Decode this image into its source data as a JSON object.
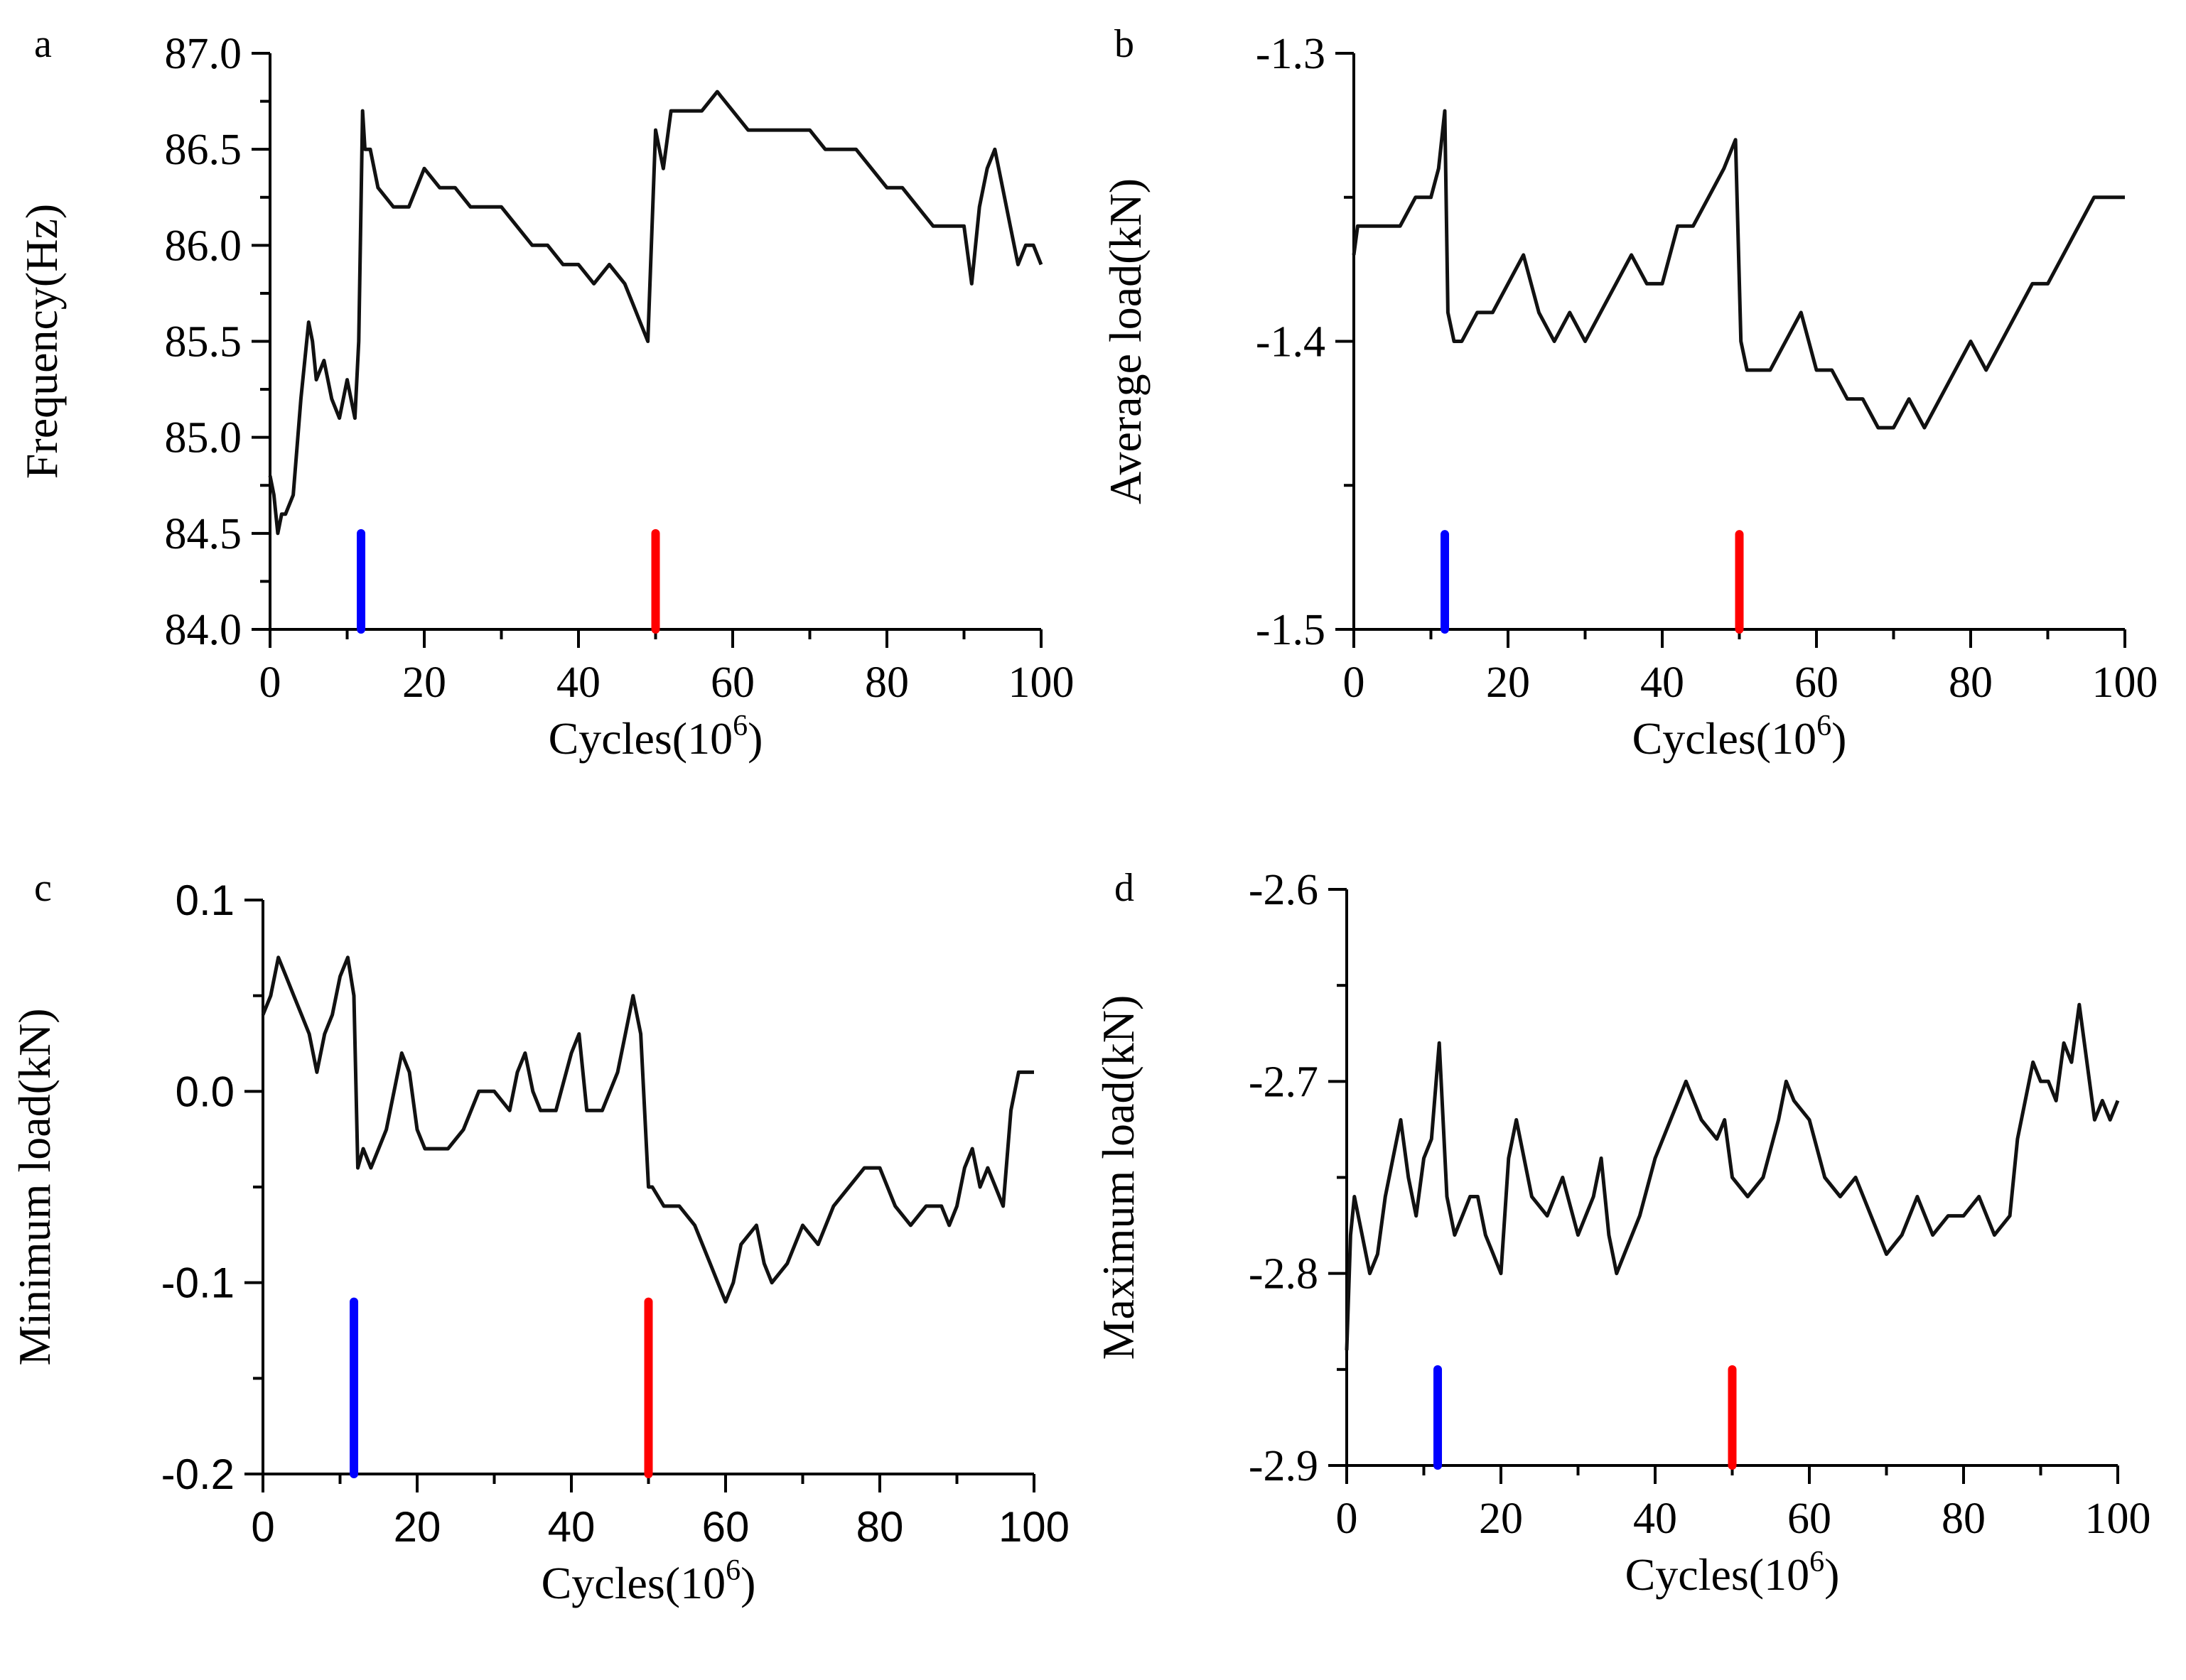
{
  "chart_data": [
    {
      "id": "a",
      "type": "line",
      "panel_label": "a",
      "xlabel": "Cycles(10",
      "xlabel_exp": "6",
      "xlabel_close": ")",
      "ylabel": "Frequency(Hz)",
      "xlim": [
        0,
        100
      ],
      "ylim": [
        84.0,
        87.0
      ],
      "xticks": [
        0,
        20,
        40,
        60,
        80,
        100
      ],
      "xtick_labels": [
        "0",
        "20",
        "40",
        "60",
        "80",
        "100"
      ],
      "yticks": [
        84.0,
        84.5,
        85.0,
        85.5,
        86.0,
        86.5,
        87.0
      ],
      "ytick_labels": [
        "84.0",
        "84.5",
        "85.0",
        "85.5",
        "86.0",
        "86.5",
        "87.0"
      ],
      "yminor": [
        84.25,
        84.75,
        85.25,
        85.75,
        86.25,
        86.75
      ],
      "tick_font": "serif",
      "markers": [
        {
          "x": 11.8,
          "y_from": 84.0,
          "y_to": 84.5,
          "color": "#0000ff"
        },
        {
          "x": 50.0,
          "y_from": 84.0,
          "y_to": 84.5,
          "color": "#ff0000"
        }
      ],
      "series": [
        {
          "name": "Frequency",
          "x": [
            0,
            0.5,
            1,
            1.5,
            2,
            3,
            4,
            5,
            5.5,
            6,
            7,
            8,
            9,
            10,
            11,
            11.5,
            12,
            12.3,
            13,
            14,
            16,
            18,
            20,
            22,
            24,
            26,
            28,
            30,
            32,
            34,
            36,
            38,
            40,
            42,
            44,
            46,
            47,
            48,
            49,
            50,
            50.5,
            51,
            52,
            54,
            56,
            58,
            60,
            62,
            64,
            66,
            68,
            70,
            72,
            74,
            76,
            78,
            80,
            82,
            84,
            86,
            88,
            90,
            91,
            92,
            93,
            94,
            95,
            96,
            97,
            98,
            99,
            100
          ],
          "y": [
            84.8,
            84.7,
            84.5,
            84.6,
            84.6,
            84.7,
            85.2,
            85.6,
            85.5,
            85.3,
            85.4,
            85.2,
            85.1,
            85.3,
            85.1,
            85.5,
            86.7,
            86.5,
            86.5,
            86.3,
            86.2,
            86.2,
            86.4,
            86.3,
            86.3,
            86.2,
            86.2,
            86.2,
            86.1,
            86.0,
            86.0,
            85.9,
            85.9,
            85.8,
            85.9,
            85.8,
            85.7,
            85.6,
            85.5,
            86.6,
            86.5,
            86.4,
            86.7,
            86.7,
            86.7,
            86.8,
            86.7,
            86.6,
            86.6,
            86.6,
            86.6,
            86.6,
            86.5,
            86.5,
            86.5,
            86.4,
            86.3,
            86.3,
            86.2,
            86.1,
            86.1,
            86.1,
            85.8,
            86.2,
            86.4,
            86.5,
            86.3,
            86.1,
            85.9,
            86.0,
            86.0,
            85.9
          ]
        }
      ]
    },
    {
      "id": "b",
      "type": "line",
      "panel_label": "b",
      "xlabel": "Cycles(10",
      "xlabel_exp": "6",
      "xlabel_close": ")",
      "ylabel": "Average load(kN)",
      "xlim": [
        0,
        100
      ],
      "ylim": [
        -1.5,
        -1.3
      ],
      "xticks": [
        0,
        20,
        40,
        60,
        80,
        100
      ],
      "xtick_labels": [
        "0",
        "20",
        "40",
        "60",
        "80",
        "100"
      ],
      "yticks": [
        -1.5,
        -1.4,
        -1.3
      ],
      "ytick_labels": [
        "-1.5",
        "-1.4",
        "-1.3"
      ],
      "yminor": [
        -1.45,
        -1.35
      ],
      "tick_font": "serif",
      "markers": [
        {
          "x": 11.8,
          "y_from": -1.5,
          "y_to": -1.467,
          "color": "#0000ff"
        },
        {
          "x": 50.0,
          "y_from": -1.5,
          "y_to": -1.467,
          "color": "#ff0000"
        }
      ],
      "series": [
        {
          "name": "Average load",
          "x": [
            0,
            0.5,
            1,
            2,
            4,
            6,
            8,
            10,
            11,
            11.8,
            12.2,
            13,
            14,
            16,
            18,
            20,
            22,
            24,
            26,
            28,
            30,
            32,
            34,
            36,
            38,
            40,
            42,
            44,
            46,
            48,
            49.5,
            50.2,
            51,
            52,
            54,
            56,
            58,
            60,
            62,
            64,
            66,
            68,
            70,
            72,
            74,
            76,
            78,
            80,
            82,
            84,
            86,
            88,
            90,
            92,
            94,
            96,
            98,
            100
          ],
          "y": [
            -1.37,
            -1.36,
            -1.36,
            -1.36,
            -1.36,
            -1.36,
            -1.35,
            -1.35,
            -1.34,
            -1.32,
            -1.39,
            -1.4,
            -1.4,
            -1.39,
            -1.39,
            -1.38,
            -1.37,
            -1.39,
            -1.4,
            -1.39,
            -1.4,
            -1.39,
            -1.38,
            -1.37,
            -1.38,
            -1.38,
            -1.36,
            -1.36,
            -1.35,
            -1.34,
            -1.33,
            -1.4,
            -1.41,
            -1.41,
            -1.41,
            -1.4,
            -1.39,
            -1.41,
            -1.41,
            -1.42,
            -1.42,
            -1.43,
            -1.43,
            -1.42,
            -1.43,
            -1.42,
            -1.41,
            -1.4,
            -1.41,
            -1.4,
            -1.39,
            -1.38,
            -1.38,
            -1.37,
            -1.36,
            -1.35,
            -1.35,
            -1.35
          ]
        }
      ]
    },
    {
      "id": "c",
      "type": "line",
      "panel_label": "c",
      "xlabel": "Cycles(10",
      "xlabel_exp": "6",
      "xlabel_close": ")",
      "ylabel": "Minimum load(kN)",
      "xlim": [
        0,
        100
      ],
      "ylim": [
        -0.2,
        0.1
      ],
      "xticks": [
        0,
        20,
        40,
        60,
        80,
        100
      ],
      "xtick_labels": [
        "0",
        "20",
        "40",
        "60",
        "80",
        "100"
      ],
      "yticks": [
        -0.2,
        -0.1,
        0.0,
        0.1
      ],
      "ytick_labels": [
        "-0.2",
        "-0.1",
        "0.0",
        "0.1"
      ],
      "yminor": [
        -0.15,
        -0.05,
        0.05
      ],
      "tick_font": "sans",
      "markers": [
        {
          "x": 11.8,
          "y_from": -0.2,
          "y_to": -0.11,
          "color": "#0000ff"
        },
        {
          "x": 50.0,
          "y_from": -0.2,
          "y_to": -0.11,
          "color": "#ff0000"
        }
      ],
      "series": [
        {
          "name": "Minimum load",
          "x": [
            0,
            1,
            2,
            3,
            4,
            5,
            6,
            7,
            8,
            9,
            10,
            11,
            11.8,
            12.3,
            13,
            14,
            15,
            16,
            17,
            18,
            19,
            20,
            21,
            22,
            24,
            26,
            28,
            30,
            32,
            33,
            34,
            35,
            36,
            38,
            40,
            41,
            42,
            44,
            46,
            47,
            48,
            49,
            50,
            50.5,
            52,
            54,
            56,
            58,
            59,
            60,
            61,
            62,
            64,
            65,
            66,
            68,
            70,
            72,
            74,
            76,
            78,
            80,
            82,
            84,
            86,
            88,
            89,
            90,
            91,
            92,
            93,
            94,
            95,
            96,
            97,
            98,
            99,
            100
          ],
          "y": [
            0.04,
            0.05,
            0.07,
            0.06,
            0.05,
            0.04,
            0.03,
            0.01,
            0.03,
            0.04,
            0.06,
            0.07,
            0.05,
            -0.04,
            -0.03,
            -0.04,
            -0.03,
            -0.02,
            0.0,
            0.02,
            0.01,
            -0.02,
            -0.03,
            -0.03,
            -0.03,
            -0.02,
            0.0,
            0.0,
            -0.01,
            0.01,
            0.02,
            0.0,
            -0.01,
            -0.01,
            0.02,
            0.03,
            -0.01,
            -0.01,
            0.01,
            0.03,
            0.05,
            0.03,
            -0.05,
            -0.05,
            -0.06,
            -0.06,
            -0.07,
            -0.09,
            -0.1,
            -0.11,
            -0.1,
            -0.08,
            -0.07,
            -0.09,
            -0.1,
            -0.09,
            -0.07,
            -0.08,
            -0.06,
            -0.05,
            -0.04,
            -0.04,
            -0.06,
            -0.07,
            -0.06,
            -0.06,
            -0.07,
            -0.06,
            -0.04,
            -0.03,
            -0.05,
            -0.04,
            -0.05,
            -0.06,
            -0.01,
            0.01,
            0.01,
            0.01
          ]
        }
      ]
    },
    {
      "id": "d",
      "type": "line",
      "panel_label": "d",
      "xlabel": "Cycles(10",
      "xlabel_exp": "6",
      "xlabel_close": ")",
      "ylabel": "Maximum load(kN)",
      "xlim": [
        0,
        100
      ],
      "ylim": [
        -2.9,
        -2.6
      ],
      "xticks": [
        0,
        20,
        40,
        60,
        80,
        100
      ],
      "xtick_labels": [
        "0",
        "20",
        "40",
        "60",
        "80",
        "100"
      ],
      "yticks": [
        -2.9,
        -2.8,
        -2.7,
        -2.6
      ],
      "ytick_labels": [
        "-2.9",
        "-2.8",
        "-2.7",
        "-2.6"
      ],
      "yminor": [
        -2.85,
        -2.75,
        -2.65
      ],
      "tick_font": "serif",
      "markers": [
        {
          "x": 11.8,
          "y_from": -2.9,
          "y_to": -2.85,
          "color": "#0000ff"
        },
        {
          "x": 50.0,
          "y_from": -2.9,
          "y_to": -2.85,
          "color": "#ff0000"
        }
      ],
      "series": [
        {
          "name": "Maximum load",
          "x": [
            0,
            0.5,
            1,
            2,
            3,
            4,
            5,
            6,
            7,
            8,
            9,
            10,
            11,
            12,
            13,
            14,
            15,
            16,
            17,
            18,
            19,
            20,
            21,
            22,
            24,
            26,
            28,
            30,
            32,
            33,
            34,
            35,
            36,
            38,
            40,
            42,
            43,
            44,
            46,
            48,
            49,
            50,
            52,
            54,
            56,
            57,
            58,
            60,
            62,
            64,
            66,
            68,
            70,
            72,
            74,
            76,
            78,
            80,
            82,
            84,
            86,
            87,
            88,
            89,
            90,
            91,
            92,
            93,
            94,
            95,
            96,
            97,
            98,
            99,
            100
          ],
          "y": [
            -2.84,
            -2.78,
            -2.76,
            -2.78,
            -2.8,
            -2.79,
            -2.76,
            -2.74,
            -2.72,
            -2.75,
            -2.77,
            -2.74,
            -2.73,
            -2.68,
            -2.76,
            -2.78,
            -2.77,
            -2.76,
            -2.76,
            -2.78,
            -2.79,
            -2.8,
            -2.74,
            -2.72,
            -2.76,
            -2.77,
            -2.75,
            -2.78,
            -2.76,
            -2.74,
            -2.78,
            -2.8,
            -2.79,
            -2.77,
            -2.74,
            -2.72,
            -2.71,
            -2.7,
            -2.72,
            -2.73,
            -2.72,
            -2.75,
            -2.76,
            -2.75,
            -2.72,
            -2.7,
            -2.71,
            -2.72,
            -2.75,
            -2.76,
            -2.75,
            -2.77,
            -2.79,
            -2.78,
            -2.76,
            -2.78,
            -2.77,
            -2.77,
            -2.76,
            -2.78,
            -2.77,
            -2.73,
            -2.71,
            -2.69,
            -2.7,
            -2.7,
            -2.71,
            -2.68,
            -2.69,
            -2.66,
            -2.69,
            -2.72,
            -2.71,
            -2.72,
            -2.71
          ]
        }
      ]
    }
  ]
}
